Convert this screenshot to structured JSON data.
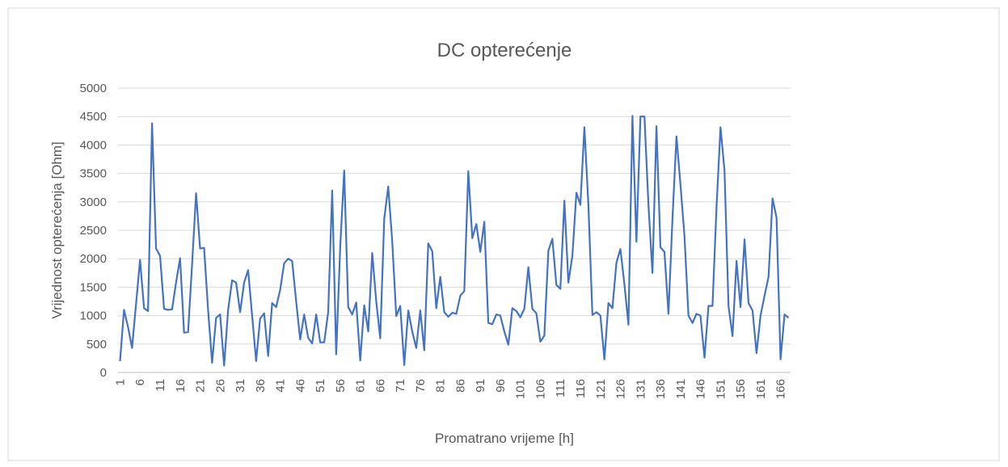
{
  "chart_data": {
    "type": "line",
    "title": "DC opterećenje",
    "x_label": "Promatrano vrijeme [h]",
    "y_label": "Vrijednost opterećenja [Ohm]",
    "categories": [
      1,
      null,
      null,
      null,
      null,
      6,
      null,
      null,
      null,
      null,
      11,
      null,
      null,
      null,
      null,
      16,
      null,
      null,
      null,
      null,
      21,
      null,
      null,
      null,
      null,
      26,
      null,
      null,
      null,
      null,
      31,
      null,
      null,
      null,
      null,
      36,
      null,
      null,
      null,
      null,
      41,
      null,
      null,
      null,
      null,
      46,
      null,
      null,
      null,
      null,
      51,
      null,
      null,
      null,
      null,
      56,
      null,
      null,
      null,
      null,
      61,
      null,
      null,
      null,
      null,
      66,
      null,
      null,
      null,
      null,
      71,
      null,
      null,
      null,
      null,
      76,
      null,
      null,
      null,
      null,
      81,
      null,
      null,
      null,
      null,
      86,
      null,
      null,
      null,
      null,
      91,
      null,
      null,
      null,
      null,
      96,
      null,
      null,
      null,
      null,
      101,
      null,
      null,
      null,
      null,
      106,
      null,
      null,
      null,
      null,
      111,
      null,
      null,
      null,
      null,
      116,
      null,
      null,
      null,
      null,
      121,
      null,
      null,
      null,
      null,
      126,
      null,
      null,
      null,
      null,
      131,
      null,
      null,
      null,
      null,
      136,
      null,
      null,
      null,
      null,
      141,
      null,
      null,
      null,
      null,
      146,
      null,
      null,
      null,
      null,
      151,
      null,
      null,
      null,
      null,
      156,
      null,
      null,
      null,
      null,
      161,
      null,
      null,
      null,
      null,
      166,
      null,
      null
    ],
    "values": [
      200,
      1100,
      800,
      430,
      1200,
      1980,
      1130,
      1080,
      4380,
      2180,
      2050,
      1120,
      1100,
      1110,
      1580,
      2010,
      700,
      710,
      1900,
      3150,
      2180,
      2190,
      1100,
      170,
      960,
      1020,
      120,
      1100,
      1620,
      1580,
      1060,
      1580,
      1800,
      1000,
      200,
      950,
      1040,
      290,
      1220,
      1150,
      1450,
      1920,
      2000,
      1960,
      1250,
      580,
      1020,
      610,
      510,
      1020,
      530,
      530,
      1060,
      3200,
      320,
      2200,
      3550,
      1150,
      1020,
      1230,
      210,
      1180,
      720,
      2100,
      1250,
      600,
      2700,
      3270,
      2300,
      990,
      1170,
      130,
      1090,
      720,
      430,
      1090,
      390,
      2270,
      2130,
      1130,
      1680,
      1060,
      980,
      1050,
      1030,
      1350,
      1430,
      3540,
      2360,
      2610,
      2120,
      2650,
      870,
      850,
      1020,
      1000,
      720,
      490,
      1130,
      1080,
      970,
      1120,
      1850,
      1120,
      1040,
      540,
      650,
      2140,
      2350,
      1540,
      1470,
      3020,
      1580,
      2050,
      3160,
      2950,
      4310,
      2950,
      1010,
      1060,
      1000,
      230,
      1220,
      1130,
      1930,
      2170,
      1550,
      840,
      4510,
      2300,
      4500,
      4500,
      2950,
      1750,
      4330,
      2200,
      2120,
      1030,
      2700,
      4150,
      3300,
      2400,
      1000,
      870,
      1030,
      1000,
      260,
      1170,
      1170,
      2900,
      4310,
      3550,
      1170,
      640,
      1960,
      1150,
      2340,
      1220,
      1090,
      340,
      1000,
      1350,
      1680,
      3060,
      2720,
      230,
      1020,
      960
    ],
    "color": "#4472c4",
    "ylim": [
      0,
      5000
    ],
    "yticks": [
      0,
      500,
      1000,
      1500,
      2000,
      2500,
      3000,
      3500,
      4000,
      4500,
      5000
    ],
    "grid": true
  }
}
